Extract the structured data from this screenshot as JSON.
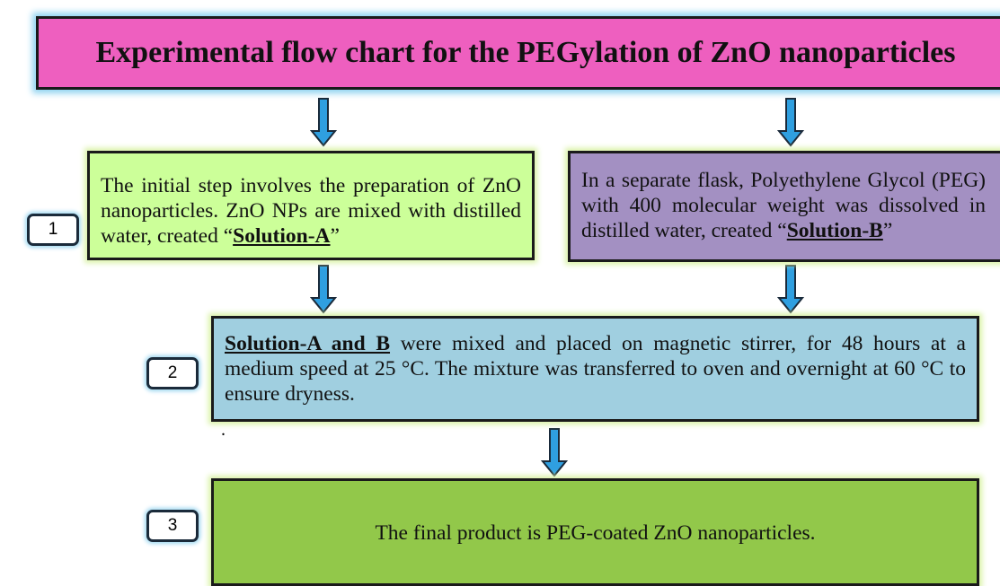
{
  "header": {
    "title": "Experimental flow chart for the PEGylation of ZnO nanoparticles"
  },
  "steps": [
    {
      "number": "1",
      "boxes": [
        {
          "text_before": "The initial step involves the preparation of ZnO nanoparticles. ZnO NPs are mixed with distilled water, created “",
          "highlight": "Solution-A",
          "text_after": "”"
        },
        {
          "text_before": "In a separate flask, Polyethylene Glycol (PEG) with 400 molecular weight was dissolved in distilled water, created “",
          "highlight": "Solution-B",
          "text_after": "”"
        }
      ]
    },
    {
      "number": "2",
      "boxes": [
        {
          "highlight": "Solution-A and B",
          "text_after": " were mixed and placed on magnetic stirrer, for 48 hours at a medium speed at 25 °C. The mixture was transferred to oven and overnight at 60 °C to ensure dryness."
        }
      ]
    },
    {
      "number": "3",
      "boxes": [
        {
          "text_after": "The final product is PEG-coated ZnO nanoparticles."
        }
      ]
    }
  ],
  "stray_mark": "."
}
